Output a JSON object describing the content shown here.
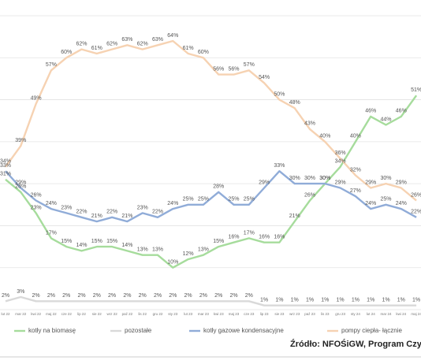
{
  "chart_data": {
    "type": "line",
    "categories": [
      "lut 22",
      "mar 22",
      "kwi 22",
      "maj 22",
      "cze 22",
      "lip 22",
      "sie 22",
      "wrz 22",
      "paź 22",
      "lis 22",
      "gru 22",
      "sty 23",
      "lut 23",
      "mar 23",
      "kwi 23",
      "maj 23",
      "cze 23",
      "lip 23",
      "sie 23",
      "wrz 23",
      "paź 23",
      "lis 23",
      "gru 23",
      "sty 24",
      "lut 24",
      "mar 24",
      "kwi 24",
      "maj 24"
    ],
    "series": [
      {
        "name": "kotły na biomasę",
        "color": "#a6dc9c",
        "values": [
          31,
          28,
          23,
          17,
          15,
          14,
          15,
          15,
          14,
          13,
          13,
          10,
          12,
          13,
          15,
          16,
          17,
          16,
          16,
          21,
          26,
          30,
          34,
          40,
          46,
          44,
          46,
          51
        ],
        "value_labels": [
          "31%",
          "28%",
          "23%",
          "17%",
          "15%",
          "14%",
          "15%",
          "15%",
          "14%",
          "13%",
          "13%",
          "10%",
          "12%",
          "13%",
          "15%",
          "16%",
          "17%",
          "16%",
          "16%",
          "21%",
          "26%",
          "30%",
          "34%",
          "40%",
          "46%",
          "44%",
          "46%",
          "51%"
        ]
      },
      {
        "name": "pozostałe",
        "color": "#d9d9d9",
        "values": [
          2,
          3,
          2,
          2,
          2,
          2,
          2,
          2,
          2,
          2,
          2,
          2,
          2,
          2,
          2,
          2,
          2,
          1,
          1,
          1,
          1,
          1,
          1,
          1,
          1,
          1,
          1,
          1
        ],
        "value_labels": [
          "2%",
          "3%",
          "2%",
          "2%",
          "2%",
          "2%",
          "2%",
          "2%",
          "2%",
          "2%",
          "2%",
          "2%",
          "2%",
          "2%",
          "2%",
          "2%",
          "2%",
          "1%",
          "1%",
          "1%",
          "1%",
          "1%",
          "1%",
          "1%",
          "1%",
          "1%",
          "1%",
          "1%"
        ]
      },
      {
        "name": "kotły gazowe kondensacyjne",
        "color": "#90acd8",
        "values": [
          33,
          29,
          26,
          24,
          23,
          22,
          21,
          22,
          21,
          23,
          22,
          24,
          25,
          25,
          28,
          25,
          25,
          29,
          33,
          30,
          30,
          30,
          29,
          27,
          24,
          25,
          24,
          22
        ],
        "value_labels": [
          "33%",
          "29%",
          "26%",
          "24%",
          "23%",
          "22%",
          "21%",
          "22%",
          "21%",
          "23%",
          "22%",
          "24%",
          "25%",
          "25%",
          "28%",
          "25%",
          "25%",
          "29%",
          "33%",
          "30%",
          "30%",
          "30%",
          "29%",
          "27%",
          "24%",
          "25%",
          "24%",
          "22%"
        ]
      },
      {
        "name": "pompy ciepła- łącznie",
        "color": "#f6d2b2",
        "values": [
          34,
          39,
          49,
          57,
          60,
          62,
          61,
          62,
          63,
          62,
          63,
          64,
          61,
          60,
          56,
          56,
          57,
          54,
          50,
          48,
          43,
          40,
          36,
          32,
          29,
          30,
          29,
          26
        ],
        "value_labels": [
          "34%",
          "39%",
          "49%",
          "57%",
          "60%",
          "62%",
          "61%",
          "62%",
          "63%",
          "62%",
          "63%",
          "64%",
          "61%",
          "60%",
          "56%",
          "56%",
          "57%",
          "54%",
          "50%",
          "48%",
          "43%",
          "40%",
          "36%",
          "32%",
          "29%",
          "30%",
          "29%",
          "26%"
        ]
      }
    ],
    "ylim": [
      0,
      70
    ],
    "yticks": [
      0,
      10,
      20,
      30,
      40,
      50,
      60,
      70
    ],
    "grid": true,
    "source": "Źródło: NFOŚiGW, Program Czyste"
  }
}
